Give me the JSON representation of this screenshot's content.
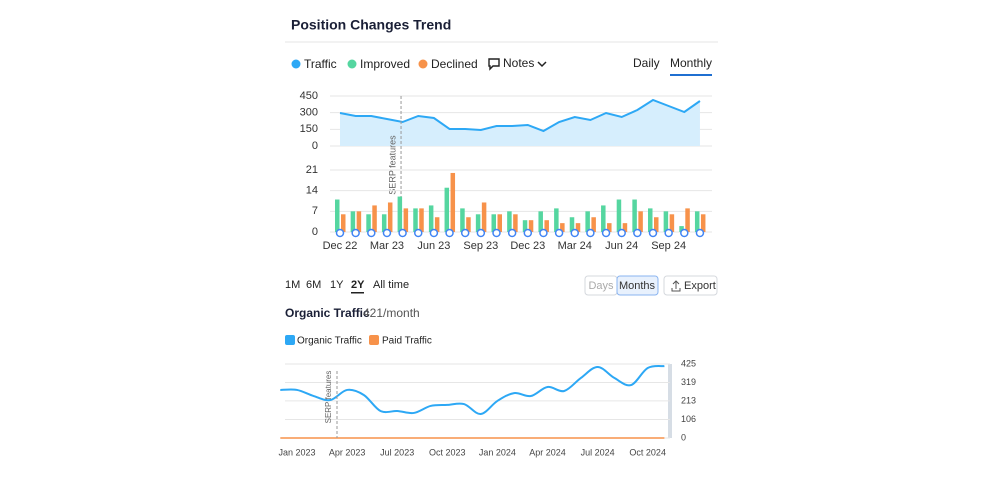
{
  "header": {
    "title": "Position Changes Trend"
  },
  "notes": "Notes",
  "view": {
    "daily": "Daily",
    "monthly": "Monthly"
  },
  "range": [
    "1M",
    "6M",
    "1Y",
    "2Y",
    "All time"
  ],
  "toggle": {
    "days": "Days",
    "months": "Months",
    "export": "Export"
  },
  "organic": {
    "title": "Organic Traffic",
    "value": "421/month",
    "checks": [
      "Organic Traffic",
      "Paid Traffic"
    ]
  },
  "chart_data": [
    {
      "type": "area",
      "series": [
        {
          "name": "Traffic",
          "color": "#2da8f5",
          "values": [
            297,
            270,
            270,
            243,
            216,
            270,
            252,
            153,
            153,
            144,
            180,
            180,
            189,
            135,
            216,
            261,
            234,
            297,
            261,
            324,
            414,
            360,
            306,
            405
          ]
        }
      ],
      "ylim": [
        0,
        450
      ],
      "yticks": [
        0,
        150,
        300,
        450
      ],
      "grid": true,
      "annotation": "SERP features"
    },
    {
      "type": "bar",
      "categories": [
        "Dec 22",
        null,
        null,
        "Mar 23",
        null,
        null,
        "Jun 23",
        null,
        null,
        "Sep 23",
        null,
        null,
        "Dec 23",
        null,
        null,
        "Mar 24",
        null,
        null,
        "Jun 24",
        null,
        null,
        "Sep 24",
        null,
        null
      ],
      "series": [
        {
          "name": "Improved",
          "color": "#55d6a0",
          "values": [
            11,
            7,
            6,
            6,
            12,
            8,
            9,
            15,
            8,
            6,
            6,
            7,
            4,
            7,
            8,
            5,
            7,
            9,
            11,
            11,
            8,
            7,
            2,
            7
          ]
        },
        {
          "name": "Declined",
          "color": "#f7924a",
          "values": [
            6,
            7,
            9,
            10,
            8,
            8,
            5,
            20,
            5,
            10,
            6,
            6,
            4,
            4,
            3,
            3,
            5,
            3,
            3,
            7,
            5,
            6,
            8,
            6
          ]
        }
      ],
      "ylim": [
        0,
        21
      ],
      "yticks": [
        0,
        7,
        14,
        21
      ],
      "grid": true
    },
    {
      "type": "line",
      "categories": [
        null,
        "Jan 2023",
        null,
        null,
        "Apr 2023",
        null,
        null,
        "Jul 2023",
        null,
        null,
        "Oct 2023",
        null,
        null,
        "Jan 2024",
        null,
        null,
        "Apr 2024",
        null,
        null,
        "Jul 2024",
        null,
        null,
        "Oct 2024",
        null
      ],
      "series": [
        {
          "name": "Organic Traffic",
          "color": "#2da8f5",
          "values": [
            276,
            276,
            241,
            218,
            276,
            247,
            155,
            155,
            144,
            184,
            190,
            195,
            138,
            213,
            258,
            241,
            293,
            270,
            345,
            408,
            345,
            304,
            402,
            413
          ]
        },
        {
          "name": "Paid Traffic",
          "color": "#f7924a",
          "values": [
            0,
            0,
            0,
            0,
            0,
            0,
            0,
            0,
            0,
            0,
            0,
            0,
            0,
            0,
            0,
            0,
            0,
            0,
            0,
            0,
            0,
            0,
            0,
            0
          ]
        }
      ],
      "ylim": [
        0,
        425
      ],
      "yticks": [
        0,
        106,
        213,
        319,
        425
      ],
      "grid": true,
      "annotation": "SERP features"
    }
  ]
}
